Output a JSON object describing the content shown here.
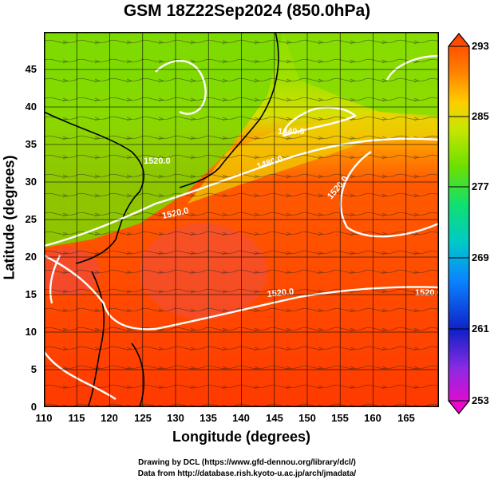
{
  "title": "GSM 18Z22Sep2024 (850.0hPa)",
  "x_axis": {
    "label": "Longitude (degrees)",
    "ticks": [
      "110",
      "115",
      "120",
      "125",
      "130",
      "135",
      "140",
      "145",
      "150",
      "155",
      "160",
      "165"
    ],
    "range": [
      110,
      170
    ]
  },
  "y_axis": {
    "label": "Latitude  (degrees)",
    "ticks": [
      "0",
      "5",
      "10",
      "15",
      "20",
      "25",
      "30",
      "35",
      "40",
      "45"
    ],
    "range": [
      0,
      50
    ]
  },
  "colorbar": {
    "ticks": [
      "293",
      "285",
      "277",
      "269",
      "261",
      "253"
    ],
    "range": [
      253,
      293
    ],
    "colors": [
      "#ff00c8",
      "#7a2fd0",
      "#1020c8",
      "#0a84ff",
      "#00c9c9",
      "#10e070",
      "#6ce000",
      "#c8e600",
      "#ffcc00",
      "#ff8000",
      "#ff3a00"
    ]
  },
  "contour_labels": [
    "1440.0",
    "1480.0",
    "1520.0",
    "1520.0",
    "1520.0",
    "1520.0",
    "1520.0"
  ],
  "credits": {
    "line1": "Drawing by DCL (https://www.gfd-dennou.org/library/dcl/)",
    "line2": "Data from http://database.rish.kyoto-u.ac.jp/arch/jmadata/"
  },
  "colors": {
    "warm": "#ff3c00",
    "hot": "#f53a32",
    "green": "#7ad800",
    "contour": "#ffffff",
    "coast": "#000000"
  }
}
